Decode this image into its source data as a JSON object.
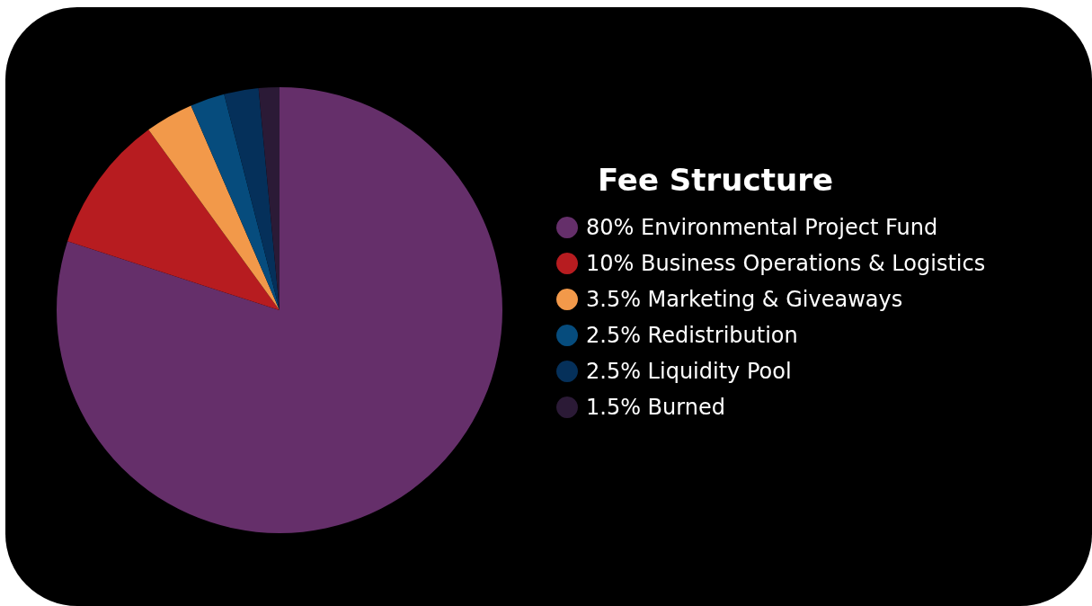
{
  "chart_data": {
    "type": "pie",
    "title": "Fee Structure",
    "categories": [
      "80% Environmental Project Fund",
      "10% Business Operations & Logistics",
      "3.5% Marketing & Giveaways",
      "2.5% Redistribution",
      "2.5% Liquidity Pool",
      "1.5% Burned"
    ],
    "values": [
      80,
      10,
      3.5,
      2.5,
      2.5,
      1.5
    ],
    "colors": [
      "#652f6a",
      "#b71c20",
      "#f2994a",
      "#064c7d",
      "#05305a",
      "#2b1a36"
    ],
    "legend": "right"
  }
}
